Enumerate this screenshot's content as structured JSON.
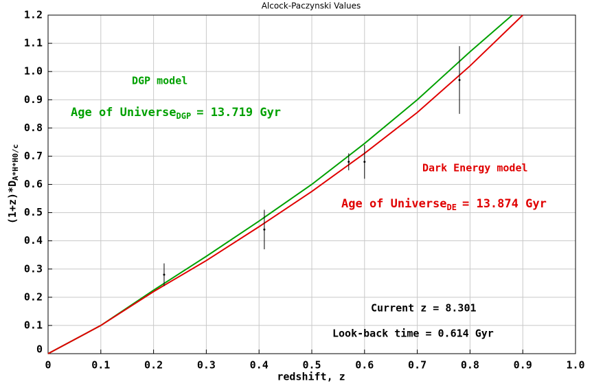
{
  "chart_data": {
    "type": "line",
    "title": "Alcock-Paczynski Values",
    "xlabel": "redshift, z",
    "ylabel": "(1+z)*D",
    "ylabel_sub": "A*H*H0/c",
    "xlim": [
      0,
      1.0
    ],
    "ylim": [
      0,
      1.2
    ],
    "xticks": [
      0,
      0.1,
      0.2,
      0.3,
      0.4,
      0.5,
      0.6,
      0.7,
      0.8,
      0.9,
      {
        "value": 1,
        "label": "1.0"
      }
    ],
    "yticks": [
      0,
      0.1,
      0.2,
      0.3,
      0.4,
      0.5,
      0.6,
      0.7,
      0.8,
      0.9,
      {
        "value": 1,
        "label": "1.0"
      },
      1.1,
      1.2
    ],
    "grid": true,
    "series": [
      {
        "name": "DGP model",
        "color": "#00a000",
        "x": [
          0,
          0.1,
          0.2,
          0.3,
          0.4,
          0.5,
          0.6,
          0.7,
          0.8,
          0.88
        ],
        "values": [
          0,
          0.1,
          0.225,
          0.345,
          0.47,
          0.6,
          0.745,
          0.9,
          1.07,
          1.2
        ]
      },
      {
        "name": "Dark Energy model",
        "color": "#e00000",
        "x": [
          0,
          0.1,
          0.2,
          0.3,
          0.4,
          0.5,
          0.6,
          0.7,
          0.8,
          0.9
        ],
        "values": [
          0,
          0.1,
          0.22,
          0.33,
          0.45,
          0.575,
          0.71,
          0.855,
          1.02,
          1.2
        ]
      }
    ],
    "observations": {
      "color": "#000000",
      "x": [
        0.22,
        0.41,
        0.57,
        0.6,
        0.78
      ],
      "values": [
        0.28,
        0.44,
        0.68,
        0.68,
        0.97
      ],
      "errors": [
        0.04,
        0.07,
        0.03,
        0.06,
        0.12
      ]
    },
    "annotations": {
      "dgp_age_prefix": "Age of Universe",
      "dgp_age_sub": "DGP",
      "dgp_age_suffix": "= 13.719 Gyr",
      "de_age_prefix": "Age of Universe",
      "de_age_sub": "DE",
      "de_age_suffix": "= 13.874 Gyr",
      "current_z": "Current z = 8.301",
      "lookback": "Look-back time = 0.614 Gyr"
    }
  }
}
